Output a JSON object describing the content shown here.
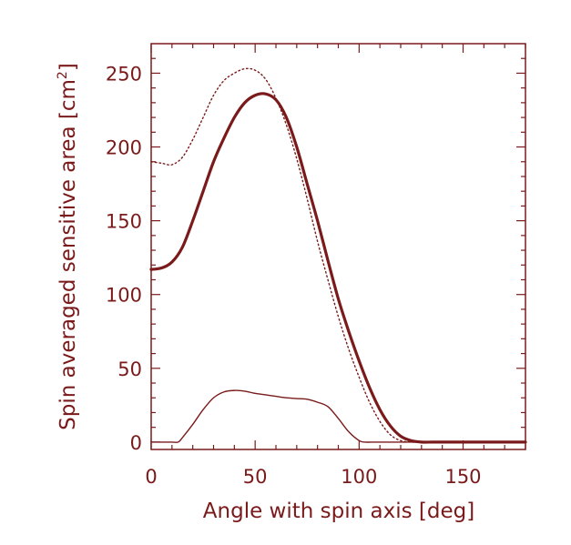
{
  "chart_data": {
    "type": "line",
    "title": "",
    "xlabel": "Angle with spin axis [deg]",
    "ylabel_main": "Spin averaged sensitive area [cm",
    "ylabel_sup": "2",
    "ylabel_close": "]",
    "xlim": [
      0,
      180
    ],
    "ylim": [
      -5,
      270
    ],
    "xticks": [
      0,
      50,
      100,
      150
    ],
    "yticks": [
      0,
      50,
      100,
      150,
      200,
      250
    ],
    "color": "#7a1a1a",
    "grid": false,
    "legend": "none",
    "series": [
      {
        "style": "thick-solid",
        "x": [
          0,
          5,
          10,
          15,
          20,
          25,
          30,
          35,
          40,
          45,
          50,
          55,
          60,
          65,
          70,
          75,
          80,
          85,
          90,
          95,
          100,
          105,
          110,
          115,
          120,
          125,
          130,
          135,
          140,
          150,
          160,
          170,
          180
        ],
        "y": [
          117,
          118,
          122,
          132,
          150,
          170,
          190,
          206,
          220,
          230,
          235,
          236,
          232,
          220,
          200,
          175,
          150,
          123,
          97,
          75,
          55,
          37,
          22,
          11,
          4,
          1,
          0,
          0,
          0,
          0,
          0,
          0,
          0
        ]
      },
      {
        "style": "dotted",
        "x": [
          0,
          5,
          10,
          15,
          20,
          25,
          30,
          35,
          40,
          45,
          50,
          55,
          60,
          65,
          70,
          75,
          80,
          85,
          90,
          95,
          100,
          105,
          110,
          115,
          120,
          125,
          130,
          135,
          140,
          150,
          160,
          170,
          180
        ],
        "y": [
          190,
          189,
          188,
          193,
          205,
          220,
          235,
          245,
          250,
          253,
          252,
          246,
          233,
          215,
          192,
          165,
          136,
          110,
          85,
          63,
          44,
          27,
          14,
          5,
          1,
          0,
          0,
          0,
          0,
          0,
          0,
          0,
          0
        ]
      },
      {
        "style": "thin-solid",
        "x": [
          0,
          10,
          13,
          15,
          20,
          25,
          30,
          35,
          40,
          45,
          50,
          55,
          60,
          65,
          70,
          75,
          80,
          85,
          90,
          95,
          100,
          103,
          110,
          130,
          150,
          180
        ],
        "y": [
          0,
          0,
          0,
          3,
          12,
          22,
          30,
          34,
          35,
          34.5,
          33,
          32,
          31,
          30,
          29.5,
          29,
          27,
          24,
          16,
          7,
          1,
          0,
          0,
          0,
          0,
          0
        ]
      }
    ]
  }
}
